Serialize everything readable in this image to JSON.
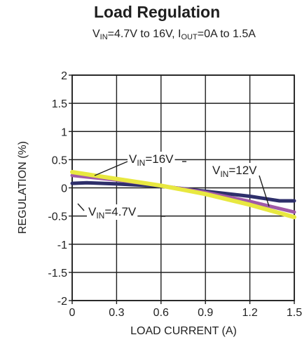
{
  "chart_data": {
    "type": "line",
    "title": "Load Regulation",
    "subtitle": {
      "parts": [
        {
          "t": "V",
          "sub": false
        },
        {
          "t": "IN",
          "sub": true
        },
        {
          "t": "=4.7V to 16V, I",
          "sub": false
        },
        {
          "t": "OUT",
          "sub": true
        },
        {
          "t": "=0A to 1.5A",
          "sub": false
        }
      ]
    },
    "xlabel": "LOAD CURRENT (A)",
    "ylabel": "REGULATION (%)",
    "xlim": [
      0,
      1.5
    ],
    "ylim": [
      -2,
      2
    ],
    "xticks": [
      "0",
      "0.3",
      "0.6",
      "0.9",
      "1.2",
      "1.5"
    ],
    "yticks": [
      "2",
      "1.5",
      "1",
      "0.5",
      "0",
      "-0.5",
      "-1",
      "-1.5",
      "-2"
    ],
    "grid": true,
    "series": [
      {
        "name": "VIN=4.7V",
        "color": "#2e2f6b",
        "x": [
          0,
          0.1,
          0.3,
          0.6,
          0.9,
          1.2,
          1.4,
          1.5
        ],
        "y": [
          0.08,
          0.09,
          0.07,
          0.03,
          -0.06,
          -0.15,
          -0.23,
          -0.23
        ]
      },
      {
        "name": "VIN=12V",
        "color": "#a05aa8",
        "x": [
          0,
          0.3,
          0.6,
          0.9,
          1.2,
          1.5
        ],
        "y": [
          0.22,
          0.14,
          0.04,
          -0.08,
          -0.24,
          -0.43
        ]
      },
      {
        "name": "VIN=16V",
        "color": "#e8e840",
        "x": [
          0,
          0.3,
          0.6,
          0.9,
          1.2,
          1.5
        ],
        "y": [
          0.28,
          0.16,
          0.04,
          -0.11,
          -0.3,
          -0.52
        ]
      }
    ],
    "annotations": [
      {
        "label": [
          "V",
          "IN",
          "=16V"
        ],
        "series": 2
      },
      {
        "label": [
          "V",
          "IN",
          "=12V"
        ],
        "series": 1
      },
      {
        "label": [
          "V",
          "IN",
          "=4.7V"
        ],
        "series": 0
      }
    ]
  }
}
